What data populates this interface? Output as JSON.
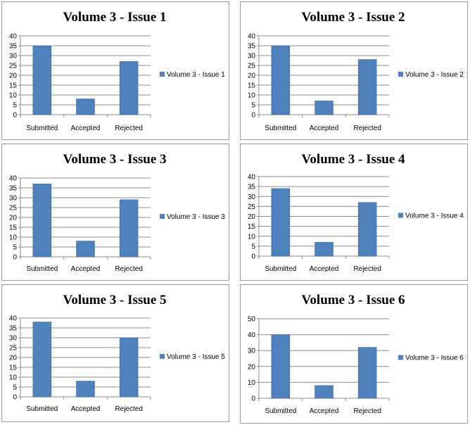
{
  "colors": {
    "bar": "#4f81bd",
    "bar_stroke": "#3c6796",
    "grid": "#8c8c8c",
    "axis": "#8c8c8c"
  },
  "chart_data": [
    {
      "type": "bar",
      "title": "Volume 3 - Issue 1",
      "categories": [
        "Submitted",
        "Accepted",
        "Rejected"
      ],
      "series": [
        {
          "name": "Volume 3 - Issue 1",
          "values": [
            35,
            8,
            27
          ]
        }
      ],
      "ylim": [
        0,
        40
      ],
      "yticks": [
        0,
        5,
        10,
        15,
        20,
        25,
        30,
        35,
        40
      ],
      "grid": true,
      "legend": "right"
    },
    {
      "type": "bar",
      "title": "Volume 3 - Issue 2",
      "categories": [
        "Submitted",
        "Accepted",
        "Rejected"
      ],
      "series": [
        {
          "name": "Volume 3 - Issue 2",
          "values": [
            35,
            7,
            28
          ]
        }
      ],
      "ylim": [
        0,
        40
      ],
      "yticks": [
        0,
        5,
        10,
        15,
        20,
        25,
        30,
        35,
        40
      ],
      "grid": true,
      "legend": "right"
    },
    {
      "type": "bar",
      "title": "Volume 3 - Issue 3",
      "categories": [
        "Submitted",
        "Accepted",
        "Rejected"
      ],
      "series": [
        {
          "name": "Volume 3 - Issue 3",
          "values": [
            37,
            8,
            29
          ]
        }
      ],
      "ylim": [
        0,
        40
      ],
      "yticks": [
        0,
        5,
        10,
        15,
        20,
        25,
        30,
        35,
        40
      ],
      "grid": true,
      "legend": "right"
    },
    {
      "type": "bar",
      "title": "Volume 3 - Issue 4",
      "categories": [
        "Submitted",
        "Accepted",
        "Rejected"
      ],
      "series": [
        {
          "name": "Volume 3 - Issue 4",
          "values": [
            34,
            7,
            27
          ]
        }
      ],
      "ylim": [
        0,
        40
      ],
      "yticks": [
        0,
        5,
        10,
        15,
        20,
        25,
        30,
        35,
        40
      ],
      "grid": true,
      "legend": "right"
    },
    {
      "type": "bar",
      "title": "Volume 3 - Issue 5",
      "categories": [
        "Submitted",
        "Accepted",
        "Rejected"
      ],
      "series": [
        {
          "name": "Volume 3 - Issue 5",
          "values": [
            38,
            8,
            30
          ]
        }
      ],
      "ylim": [
        0,
        40
      ],
      "yticks": [
        0,
        5,
        10,
        15,
        20,
        25,
        30,
        35,
        40
      ],
      "grid": true,
      "legend": "right"
    },
    {
      "type": "bar",
      "title": "Volume 3 - Issue 6",
      "categories": [
        "Submitted",
        "Accepted",
        "Rejected"
      ],
      "series": [
        {
          "name": "Volume 3 - Issue 6",
          "values": [
            40,
            8,
            32
          ]
        }
      ],
      "ylim": [
        0,
        50
      ],
      "yticks": [
        0,
        10,
        20,
        30,
        40,
        50
      ],
      "grid": true,
      "legend": "right"
    }
  ]
}
